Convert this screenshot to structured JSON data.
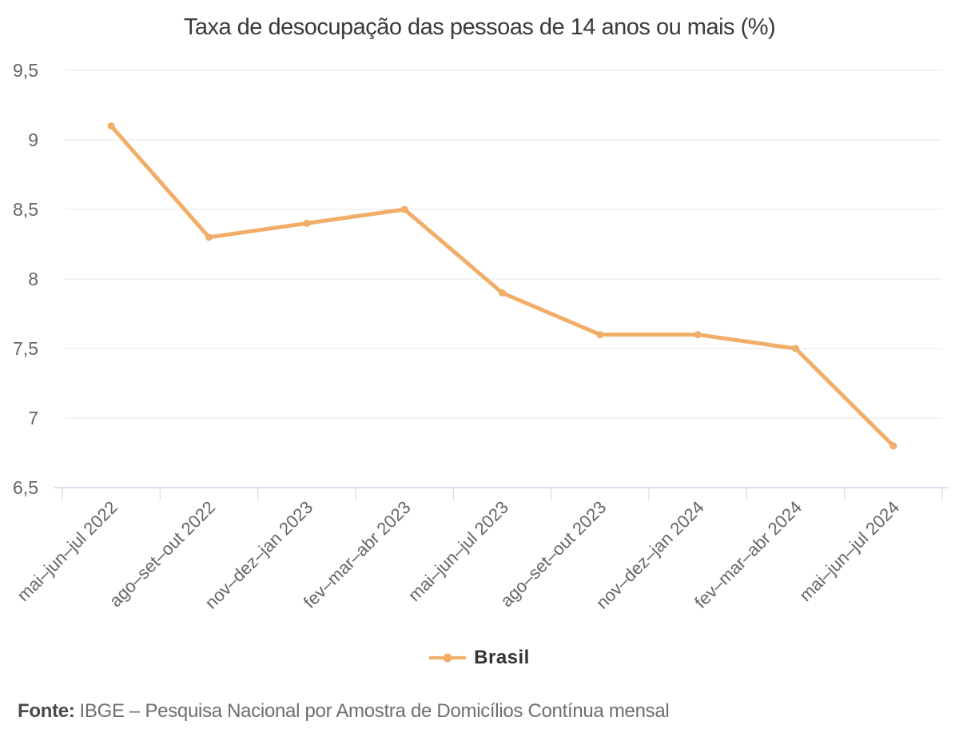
{
  "chart_data": {
    "type": "line",
    "title": "Taxa de desocupação das pessoas de 14 anos ou mais (%)",
    "categories": [
      "mai–jun–jul 2022",
      "ago–set–out 2022",
      "nov–dez–jan 2023",
      "fev–mar–abr 2023",
      "mai–jun–jul 2023",
      "ago–set–out 2023",
      "nov–dez–jan 2024",
      "fev–mar–abr 2024",
      "mai–jun–jul 2024"
    ],
    "series": [
      {
        "name": "Brasil",
        "color": "#f0ae68",
        "values": [
          9.1,
          8.3,
          8.4,
          8.5,
          7.9,
          7.6,
          7.6,
          7.5,
          6.8
        ]
      }
    ],
    "ylim": [
      6.5,
      9.5
    ],
    "ytick_step": 0.5,
    "ytick_labels": [
      "9,5",
      "9",
      "8,5",
      "8",
      "7,5",
      "7",
      "6,5"
    ],
    "decimal_separator": ",",
    "grid": "horizontal",
    "legend_position": "bottom",
    "xlabel": "",
    "ylabel": "",
    "colors": {
      "grid": "#e6e6e6",
      "axis": "#ccd6eb",
      "tick_label": "#666666",
      "title": "#3a3a3a"
    }
  },
  "source": {
    "label_bold": "Fonte:",
    "text": "IBGE – Pesquisa Nacional por Amostra de Domicílios Contínua mensal"
  }
}
